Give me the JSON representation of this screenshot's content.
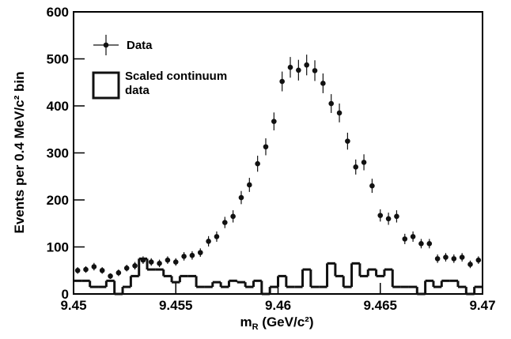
{
  "chart_data": {
    "type": "scatter",
    "x_label": [
      "m",
      "R",
      " (GeV/c²)"
    ],
    "y_label": "Events per 0.4 MeV/c² bin",
    "xlim": [
      9.45,
      9.47
    ],
    "xticks": [
      9.45,
      9.455,
      9.46,
      9.465,
      9.47
    ],
    "ylim": [
      0,
      600
    ],
    "yticks": [
      0,
      100,
      200,
      300,
      400,
      500,
      600
    ],
    "series": [
      {
        "name": "Data",
        "type": "errorbar",
        "color": "#111111",
        "x": [
          9.4502,
          9.4506,
          9.451,
          9.4514,
          9.4518,
          9.4522,
          9.4526,
          9.453,
          9.4534,
          9.4538,
          9.4542,
          9.4546,
          9.455,
          9.4554,
          9.4558,
          9.4562,
          9.4566,
          9.457,
          9.4574,
          9.4578,
          9.4582,
          9.4586,
          9.459,
          9.4594,
          9.4598,
          9.4602,
          9.4606,
          9.461,
          9.4614,
          9.4618,
          9.4622,
          9.4626,
          9.463,
          9.4634,
          9.4638,
          9.4642,
          9.4646,
          9.465,
          9.4654,
          9.4658,
          9.4662,
          9.4666,
          9.467,
          9.4674,
          9.4678,
          9.4682,
          9.4686,
          9.469,
          9.4694,
          9.4698
        ],
        "values": [
          50,
          52,
          58,
          50,
          38,
          45,
          55,
          60,
          72,
          68,
          65,
          72,
          68,
          80,
          82,
          88,
          112,
          122,
          152,
          165,
          205,
          232,
          277,
          313,
          367,
          452,
          482,
          476,
          487,
          475,
          448,
          405,
          385,
          325,
          270,
          280,
          230,
          167,
          160,
          165,
          117,
          122,
          107,
          107,
          75,
          78,
          75,
          78,
          63,
          72
        ],
        "errors": [
          7,
          7,
          8,
          7,
          6,
          7,
          7,
          8,
          8,
          8,
          8,
          8,
          8,
          9,
          9,
          9,
          11,
          11,
          12,
          13,
          14,
          15,
          17,
          18,
          19,
          21,
          22,
          22,
          22,
          22,
          21,
          20,
          20,
          18,
          16,
          17,
          15,
          13,
          13,
          13,
          11,
          11,
          10,
          10,
          9,
          9,
          9,
          9,
          8,
          8
        ]
      },
      {
        "name": "Scaled continuum data",
        "type": "step",
        "color": "#111111",
        "bins": [
          9.45,
          9.4504,
          9.4508,
          9.4512,
          9.4516,
          9.452,
          9.4524,
          9.4528,
          9.4532,
          9.4536,
          9.454,
          9.4544,
          9.4548,
          9.4552,
          9.4556,
          9.456,
          9.4564,
          9.4568,
          9.4572,
          9.4576,
          9.458,
          9.4584,
          9.4588,
          9.4592,
          9.4596,
          9.46,
          9.4604,
          9.4608,
          9.4612,
          9.4616,
          9.462,
          9.4624,
          9.4628,
          9.4632,
          9.4636,
          9.464,
          9.4644,
          9.4648,
          9.4652,
          9.4656,
          9.466,
          9.4664,
          9.4668,
          9.4672,
          9.4676,
          9.468,
          9.4684,
          9.4688,
          9.4692,
          9.4696,
          9.47
        ],
        "values": [
          28,
          28,
          15,
          15,
          28,
          0,
          15,
          38,
          75,
          52,
          52,
          38,
          25,
          38,
          38,
          15,
          15,
          25,
          15,
          28,
          25,
          15,
          28,
          0,
          15,
          38,
          15,
          15,
          52,
          15,
          15,
          65,
          38,
          15,
          65,
          38,
          52,
          38,
          52,
          15,
          15,
          15,
          0,
          28,
          15,
          28,
          28,
          15,
          0,
          15
        ]
      }
    ]
  }
}
